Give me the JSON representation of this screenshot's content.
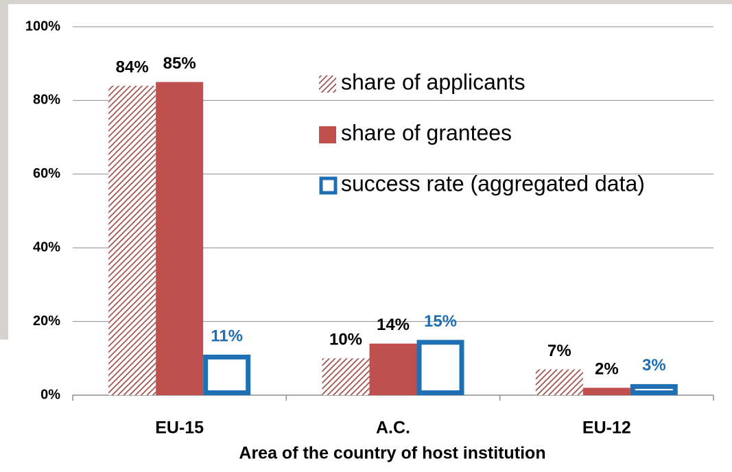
{
  "chart_data": {
    "type": "bar",
    "x_label": "Area of the country of host institution",
    "categories": [
      "EU-15",
      "A.C.",
      "EU-12"
    ],
    "series": [
      {
        "name": "share of applicants",
        "color": "#a0524f",
        "fill": "hatch",
        "values": [
          84,
          10,
          7
        ],
        "value_labels": [
          "84%",
          "10%",
          "7%"
        ],
        "label_color": "#000000"
      },
      {
        "name": "share of grantees",
        "color": "#c0504d",
        "fill": "solid",
        "values": [
          85,
          14,
          2
        ],
        "value_labels": [
          "85%",
          "14%",
          "2%"
        ],
        "label_color": "#000000"
      },
      {
        "name": "success rate (aggregated data)",
        "color": "#1f6fb5",
        "fill": "outline",
        "values": [
          11,
          15,
          3
        ],
        "value_labels": [
          "11%",
          "15%",
          "3%"
        ],
        "label_color": "#1f6fb5"
      }
    ],
    "ylim": [
      0,
      100
    ],
    "yticks": [
      {
        "value": 0,
        "label": "0%"
      },
      {
        "value": 20,
        "label": "20%"
      },
      {
        "value": 40,
        "label": "40%"
      },
      {
        "value": 60,
        "label": "60%"
      },
      {
        "value": 80,
        "label": "80%"
      },
      {
        "value": 100,
        "label": "100%"
      }
    ],
    "grid": true,
    "legend": "upper right"
  }
}
